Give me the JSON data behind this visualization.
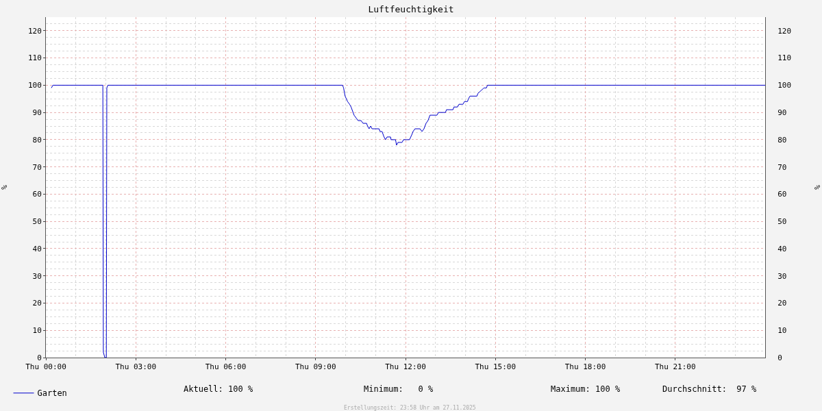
{
  "chart_data": {
    "type": "line",
    "title": "Luftfeuchtigkeit",
    "ylabel": "%",
    "y2label": "%",
    "series": [
      {
        "name": "Garten",
        "color": "#0000cc",
        "x": [
          "2025-11-27T00:11",
          "2025-11-27T00:14",
          "2025-11-27T01:54",
          "2025-11-27T01:55",
          "2025-11-27T01:58",
          "2025-11-27T02:01",
          "2025-11-27T02:02",
          "2025-11-27T02:04",
          "2025-11-27T09:54",
          "2025-11-27T09:56",
          "2025-11-27T09:59",
          "2025-11-27T10:04",
          "2025-11-27T10:08",
          "2025-11-27T10:11",
          "2025-11-27T10:17",
          "2025-11-27T10:21",
          "2025-11-27T10:25",
          "2025-11-27T10:31",
          "2025-11-27T10:35",
          "2025-11-27T10:42",
          "2025-11-27T10:44",
          "2025-11-27T10:47",
          "2025-11-27T10:50",
          "2025-11-27T10:53",
          "2025-11-27T11:07",
          "2025-11-27T11:09",
          "2025-11-27T11:13",
          "2025-11-27T11:17",
          "2025-11-27T11:20",
          "2025-11-27T11:23",
          "2025-11-27T11:30",
          "2025-11-27T11:31",
          "2025-11-27T11:40",
          "2025-11-27T11:42",
          "2025-11-27T11:45",
          "2025-11-27T11:53",
          "2025-11-27T11:56",
          "2025-11-27T12:08",
          "2025-11-27T12:13",
          "2025-11-27T12:15",
          "2025-11-27T12:19",
          "2025-11-27T12:29",
          "2025-11-27T12:33",
          "2025-11-27T12:37",
          "2025-11-27T12:41",
          "2025-11-27T12:45",
          "2025-11-27T12:49",
          "2025-11-27T13:03",
          "2025-11-27T13:06",
          "2025-11-27T13:20",
          "2025-11-27T13:22",
          "2025-11-27T13:35",
          "2025-11-27T13:37",
          "2025-11-27T13:44",
          "2025-11-27T13:47",
          "2025-11-27T13:55",
          "2025-11-27T13:58",
          "2025-11-27T14:04",
          "2025-11-27T14:06",
          "2025-11-27T14:09",
          "2025-11-27T14:23",
          "2025-11-27T14:25",
          "2025-11-27T14:31",
          "2025-11-27T14:37",
          "2025-11-27T14:42",
          "2025-11-27T14:44",
          "2025-11-28T00:00"
        ],
        "values": [
          99,
          100,
          100,
          2,
          0,
          0,
          99,
          100,
          100,
          99,
          96,
          94,
          93,
          92,
          89,
          88,
          87,
          87,
          86,
          86,
          85,
          84,
          85,
          84,
          84,
          83,
          83,
          81,
          80,
          81,
          81,
          80,
          80,
          78,
          79,
          79,
          80,
          80,
          82,
          83,
          84,
          84,
          83,
          84,
          86,
          87,
          89,
          89,
          90,
          90,
          91,
          91,
          92,
          92,
          93,
          93,
          94,
          94,
          95,
          96,
          96,
          97,
          98,
          99,
          99,
          100,
          100
        ]
      }
    ],
    "xlim": [
      "2025-11-27T00:00",
      "2025-11-28T00:00"
    ],
    "xticks": [
      {
        "value": "2025-11-27T00:00",
        "label": "Thu 00:00"
      },
      {
        "value": "2025-11-27T03:00",
        "label": "Thu 03:00"
      },
      {
        "value": "2025-11-27T06:00",
        "label": "Thu 06:00"
      },
      {
        "value": "2025-11-27T09:00",
        "label": "Thu 09:00"
      },
      {
        "value": "2025-11-27T12:00",
        "label": "Thu 12:00"
      },
      {
        "value": "2025-11-27T15:00",
        "label": "Thu 15:00"
      },
      {
        "value": "2025-11-27T18:00",
        "label": "Thu 18:00"
      },
      {
        "value": "2025-11-27T21:00",
        "label": "Thu 21:00"
      }
    ],
    "ylim": [
      0,
      125
    ],
    "yticks": [
      0,
      10,
      20,
      30,
      40,
      50,
      60,
      70,
      80,
      90,
      100,
      110,
      120
    ],
    "y2lim": [
      0,
      125
    ],
    "y2ticks": [
      0,
      10,
      20,
      30,
      40,
      50,
      60,
      70,
      80,
      90,
      100,
      110,
      120
    ],
    "grid": true,
    "legend": "bottom left",
    "line_style": "solid",
    "annotations": [
      "Aktuell: 100 %",
      "Minimum:   0 %",
      "Maximum: 100 %",
      "Durchschnitt:  97 %",
      "Erstellungszeit: 23:58 Uhr am 27.11.2025"
    ]
  }
}
